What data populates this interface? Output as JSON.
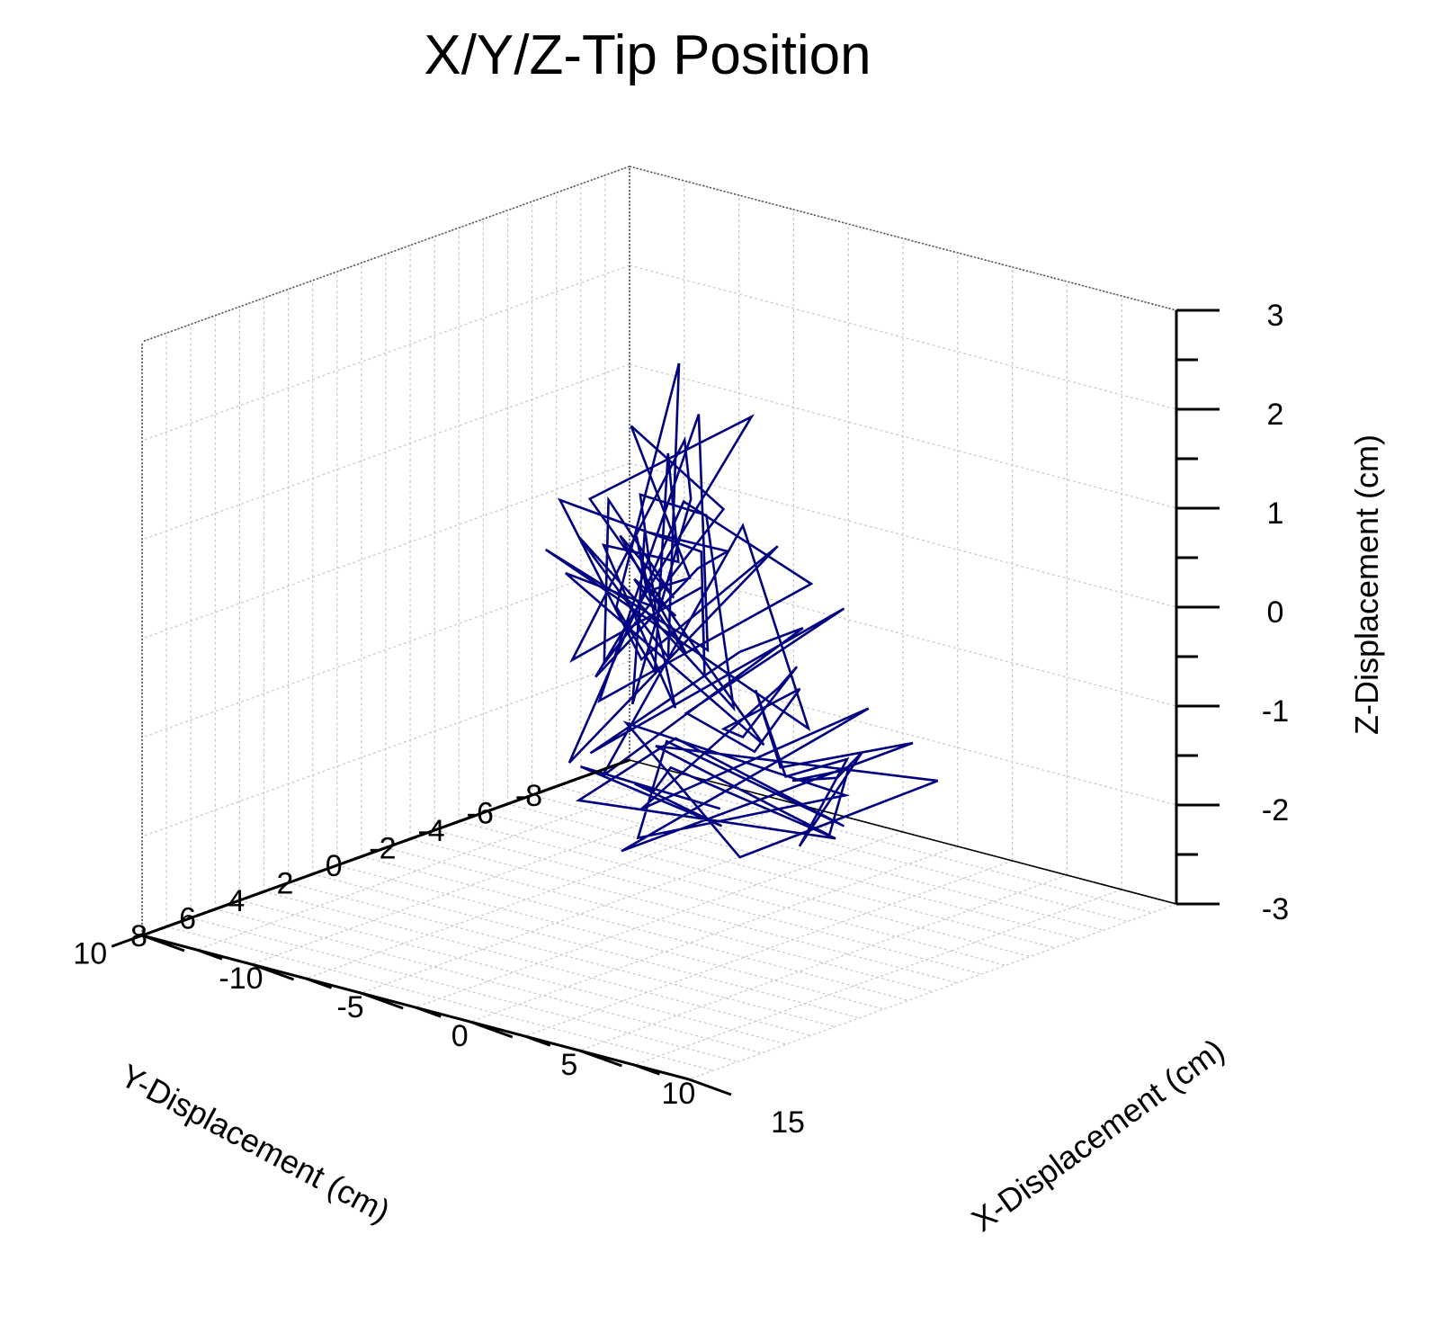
{
  "chart_data": {
    "type": "line3d",
    "title": "X/Y/Z-Tip Position",
    "xlabel": "X-Displacement (cm)",
    "ylabel": "Y-Displacement (cm)",
    "zlabel": "Z-Displacement (cm)",
    "x_ticks": [
      "-10",
      "-5",
      "0",
      "5",
      "10",
      "15"
    ],
    "y_ticks": [
      "-8",
      "-6",
      "-4",
      "-2",
      "0",
      "2",
      "4",
      "6",
      "8",
      "10"
    ],
    "z_ticks": [
      "3",
      "2",
      "1",
      "0",
      "-1",
      "-2",
      "-3"
    ],
    "xlim": [
      -10,
      15
    ],
    "ylim": [
      -8,
      12
    ],
    "zlim": [
      -3,
      3
    ],
    "grid": true,
    "series_color": "#000080",
    "trace": {
      "x": [
        -1.2,
        0.8,
        -2.5,
        1.6,
        -0.4,
        2.3,
        -1.8,
        0.2,
        1.1,
        -2.9,
        0.6,
        2.8,
        -1.0,
        0.4,
        -2.2,
        1.9,
        -0.6,
        3.1,
        -1.5,
        0.9,
        -0.2,
        2.0,
        -2.7,
        1.3,
        -0.9,
        0.0,
        2.6,
        -1.9,
        0.7,
        -0.3,
        1.7,
        -2.4,
        3.4,
        0.5,
        -1.4,
        2.1,
        -0.7,
        1.0,
        -2.0,
        4.2,
        0.3,
        -1.1,
        2.9,
        -0.5,
        1.5,
        5.1,
        0.1,
        -1.6,
        3.6,
        -0.8,
        6.2,
        1.2,
        -0.1,
        7.4,
        2.4,
        0.8,
        8.5,
        3.3,
        1.4,
        9.6,
        4.0,
        2.2,
        10.8,
        5.3,
        1.9,
        11.4,
        6.1,
        3.0,
        12.2,
        4.7,
        7.8,
        2.6,
        10.2,
        5.9,
        13.0,
        8.4,
        3.8,
        11.7,
        6.6,
        2.0,
        9.1,
        4.4,
        1.0,
        7.0,
        3.2,
        0.5,
        5.6,
        2.7,
        -0.4,
        4.1,
        1.8,
        -1.3,
        3.5,
        0.9,
        -2.1,
        2.5
      ],
      "y": [
        -2.0,
        1.5,
        -3.6,
        2.8,
        -1.2,
        3.9,
        0.4,
        -2.7,
        1.9,
        -4.1,
        0.8,
        3.2,
        -1.8,
        2.4,
        -3.0,
        1.1,
        -0.6,
        4.3,
        -2.4,
        0.2,
        2.9,
        -1.5,
        -4.6,
        1.7,
        -0.9,
        3.6,
        -2.2,
        0.9,
        -3.4,
        2.1,
        -0.3,
        -5.2,
        3.4,
        1.3,
        -2.8,
        0.6,
        2.7,
        -1.1,
        -3.9,
        1.8,
        4.1,
        -0.5,
        -2.5,
        3.0,
        0.1,
        -1.9,
        2.3,
        -3.3,
        1.0,
        3.7,
        -0.8,
        -2.6,
        2.0,
        0.5,
        -1.4,
        3.3,
        -0.2,
        1.6,
        -2.9,
        2.6,
        0.7,
        -1.7,
        3.8,
        -0.4,
        2.2,
        1.4,
        -2.1,
        4.0,
        0.3,
        -1.0,
        2.8,
        -3.1,
        1.2,
        -0.7,
        3.1,
        0.0,
        -2.3,
        2.5,
        -1.3,
        1.7,
        -3.5,
        0.4,
        2.0,
        -1.6,
        3.5,
        -0.1,
        -2.8,
        1.5,
        2.7,
        -3.8,
        0.9,
        -1.2,
        3.9,
        -2.0,
        1.1,
        -0.5
      ],
      "z": [
        -0.5,
        0.3,
        -1.1,
        0.9,
        -0.2,
        1.4,
        -0.8,
        0.6,
        1.9,
        -0.4,
        0.1,
        1.0,
        -1.4,
        0.7,
        -0.1,
        1.6,
        -0.9,
        0.4,
        2.0,
        -0.6,
        0.8,
        -1.2,
        0.2,
        1.2,
        -0.3,
        0.5,
        -1.6,
        0.9,
        1.5,
        -0.7,
        0.3,
        -0.2,
        1.1,
        -1.0,
        0.6,
        1.7,
        -0.5,
        0.0,
        -1.3,
        0.8,
        1.3,
        -0.8,
        0.4,
        -1.5,
        1.0,
        0.2,
        -0.9,
        1.4,
        -0.3,
        0.7,
        -1.1,
        0.5,
        -1.7,
        0.1,
        -0.6,
        -1.3,
        0.3,
        -0.9,
        -1.8,
        -0.2,
        -1.1,
        -1.5,
        0.2,
        -0.7,
        -1.9,
        -0.4,
        -1.2,
        -2.1,
        -0.8,
        -1.6,
        -0.3,
        -2.0,
        -1.0,
        -2.3,
        -0.6,
        -1.4,
        -1.9,
        -0.9,
        -2.2,
        -1.3,
        -1.7,
        -2.4,
        -1.1,
        -1.8,
        -2.0,
        -1.5,
        -2.3,
        -1.2,
        -1.9,
        -2.6,
        -1.6,
        -2.2,
        -1.4,
        -2.5,
        -1.8,
        -2.1
      ]
    }
  }
}
